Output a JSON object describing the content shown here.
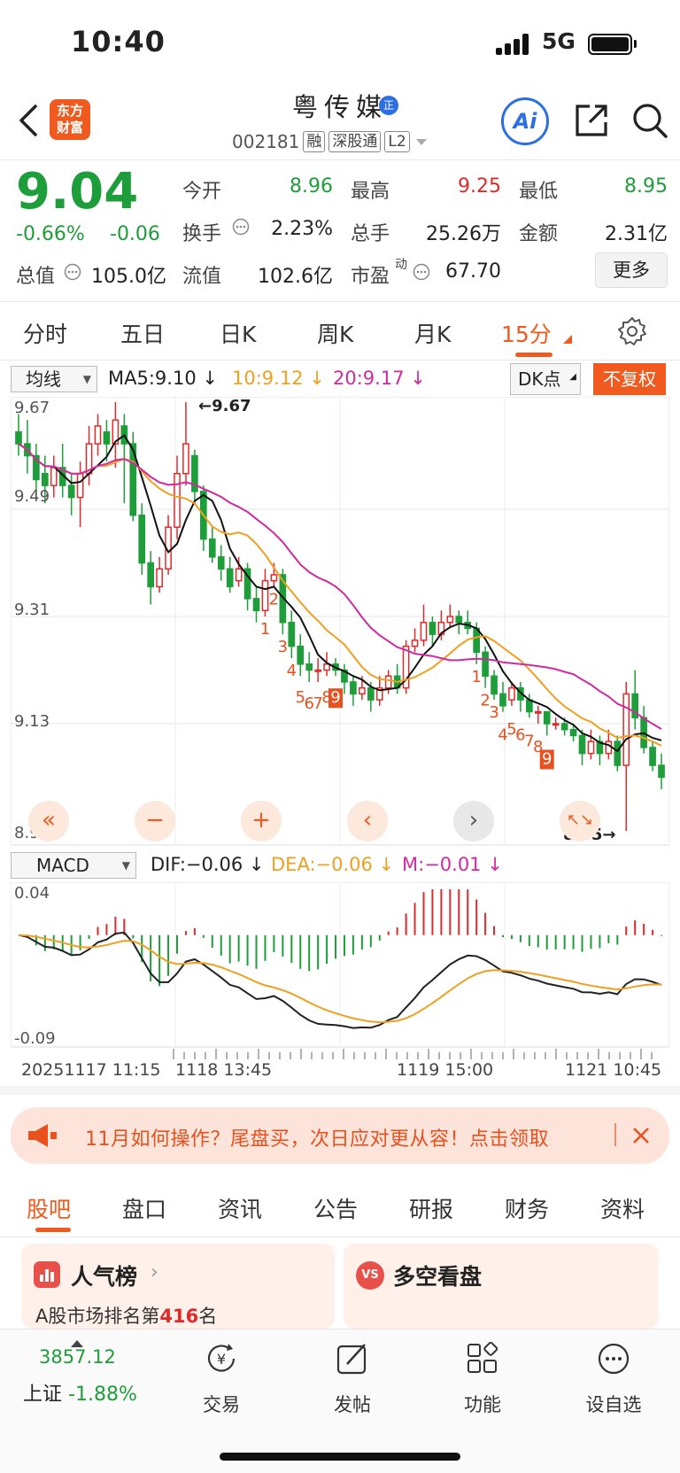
{
  "status_bar": {
    "time": "10:40",
    "network": "5G"
  },
  "header": {
    "logo_text_top": "东方",
    "logo_text_bottom": "财富",
    "title": "粤传媒",
    "title_badge": "正",
    "code": "002181",
    "tags": [
      "融",
      "深股通",
      "L2"
    ],
    "ai_label": "Ai"
  },
  "quote": {
    "price": "9.04",
    "change_pct": "-0.66%",
    "change": "-0.06",
    "open_label": "今开",
    "open": "8.96",
    "high_label": "最高",
    "high": "9.25",
    "low_label": "最低",
    "low": "8.95",
    "turnover_label": "换手",
    "turnover": "2.23%",
    "volume_label": "总手",
    "volume": "25.26万",
    "amount_label": "金额",
    "amount": "2.31亿",
    "mktcap_label": "总值",
    "mktcap": "105.0亿",
    "float_label": "流值",
    "float_cap": "102.6亿",
    "pe_label": "市盈",
    "pe_sup": "动",
    "pe": "67.70",
    "more_label": "更多"
  },
  "chart_tabs": [
    "分时",
    "五日",
    "日K",
    "周K",
    "月K",
    "15分"
  ],
  "ma_bar": {
    "select": "均线",
    "ma5": "MA5:9.10",
    "ma10": "10:9.12",
    "ma20": "20:9.17",
    "dk": "DK点",
    "fq": "不复权"
  },
  "macd_bar": {
    "select": "MACD",
    "dif": "DIF:−0.06",
    "dea": "DEA:−0.06",
    "m": "M:−0.01"
  },
  "chart_data": {
    "type": "candlestick",
    "interval": "15分",
    "y_ticks": [
      "9.67",
      "9.49",
      "9.31",
      "9.13",
      "8.95"
    ],
    "ylim": [
      8.95,
      9.67
    ],
    "high_marker": "9.67",
    "low_marker": "8.95",
    "x_labels": [
      "20251117 11:15",
      "1118 13:45",
      "1119 15:00",
      "1121 10:45"
    ],
    "td_labels_1": [
      "1",
      "2",
      "3",
      "4",
      "5",
      "6",
      "7",
      "8",
      "9"
    ],
    "td_labels_2": [
      "1",
      "2",
      "3",
      "4",
      "5",
      "6",
      "7",
      "8",
      "9"
    ],
    "candles": [
      [
        9.62,
        9.6,
        9.65,
        9.58
      ],
      [
        9.6,
        9.58,
        9.64,
        9.55
      ],
      [
        9.58,
        9.54,
        9.6,
        9.52
      ],
      [
        9.55,
        9.53,
        9.58,
        9.5
      ],
      [
        9.53,
        9.56,
        9.58,
        9.51
      ],
      [
        9.56,
        9.53,
        9.6,
        9.51
      ],
      [
        9.53,
        9.51,
        9.55,
        9.48
      ],
      [
        9.51,
        9.55,
        9.57,
        9.46
      ],
      [
        9.55,
        9.6,
        9.63,
        9.53
      ],
      [
        9.6,
        9.63,
        9.65,
        9.58
      ],
      [
        9.62,
        9.6,
        9.64,
        9.57
      ],
      [
        9.6,
        9.64,
        9.67,
        9.56
      ],
      [
        9.63,
        9.6,
        9.65,
        9.5
      ],
      [
        9.6,
        9.48,
        9.62,
        9.47
      ],
      [
        9.48,
        9.4,
        9.5,
        9.38
      ],
      [
        9.4,
        9.36,
        9.42,
        9.33
      ],
      [
        9.36,
        9.39,
        9.41,
        9.35
      ],
      [
        9.39,
        9.46,
        9.48,
        9.38
      ],
      [
        9.46,
        9.55,
        9.58,
        9.44
      ],
      [
        9.55,
        9.6,
        9.67,
        9.53
      ],
      [
        9.58,
        9.52,
        9.59,
        9.5
      ],
      [
        9.52,
        9.44,
        9.53,
        9.42
      ],
      [
        9.44,
        9.41,
        9.46,
        9.4
      ],
      [
        9.41,
        9.39,
        9.43,
        9.37
      ],
      [
        9.39,
        9.36,
        9.41,
        9.35
      ],
      [
        9.37,
        9.39,
        9.41,
        9.36
      ],
      [
        9.39,
        9.34,
        9.4,
        9.32
      ],
      [
        9.34,
        9.32,
        9.36,
        9.3
      ],
      [
        9.32,
        9.37,
        9.39,
        9.31
      ],
      [
        9.37,
        9.38,
        9.4,
        9.36
      ],
      [
        9.38,
        9.3,
        9.39,
        9.28
      ],
      [
        9.3,
        9.26,
        9.32,
        9.24
      ],
      [
        9.26,
        9.23,
        9.28,
        9.21
      ],
      [
        9.23,
        9.22,
        9.25,
        9.2
      ],
      [
        9.22,
        9.22,
        9.24,
        9.2
      ],
      [
        9.22,
        9.23,
        9.25,
        9.21
      ],
      [
        9.23,
        9.22,
        9.24,
        9.21
      ],
      [
        9.22,
        9.2,
        9.23,
        9.18
      ],
      [
        9.2,
        9.18,
        9.21,
        9.16
      ],
      [
        9.18,
        9.19,
        9.21,
        9.17
      ],
      [
        9.19,
        9.17,
        9.2,
        9.15
      ],
      [
        9.17,
        9.19,
        9.21,
        9.16
      ],
      [
        9.19,
        9.21,
        9.22,
        9.18
      ],
      [
        9.21,
        9.19,
        9.23,
        9.18
      ],
      [
        9.19,
        9.26,
        9.27,
        9.18
      ],
      [
        9.26,
        9.27,
        9.29,
        9.25
      ],
      [
        9.27,
        9.3,
        9.33,
        9.26
      ],
      [
        9.3,
        9.28,
        9.31,
        9.26
      ],
      [
        9.28,
        9.3,
        9.32,
        9.27
      ],
      [
        9.3,
        9.31,
        9.33,
        9.29
      ],
      [
        9.31,
        9.3,
        9.32,
        9.28
      ],
      [
        9.3,
        9.29,
        9.32,
        9.28
      ],
      [
        9.29,
        9.25,
        9.3,
        9.23
      ],
      [
        9.25,
        9.21,
        9.26,
        9.19
      ],
      [
        9.21,
        9.18,
        9.22,
        9.17
      ],
      [
        9.18,
        9.16,
        9.2,
        9.15
      ],
      [
        9.17,
        9.19,
        9.2,
        9.16
      ],
      [
        9.19,
        9.17,
        9.2,
        9.15
      ],
      [
        9.17,
        9.15,
        9.18,
        9.14
      ],
      [
        9.15,
        9.15,
        9.16,
        9.13
      ],
      [
        9.15,
        9.13,
        9.15,
        9.11
      ],
      [
        9.13,
        9.13,
        9.14,
        9.12
      ],
      [
        9.13,
        9.12,
        9.14,
        9.11
      ],
      [
        9.12,
        9.11,
        9.13,
        9.1
      ],
      [
        9.11,
        9.08,
        9.12,
        9.06
      ],
      [
        9.08,
        9.1,
        9.12,
        9.07
      ],
      [
        9.1,
        9.08,
        9.11,
        9.06
      ],
      [
        9.08,
        9.1,
        9.12,
        9.07
      ],
      [
        9.1,
        9.06,
        9.11,
        9.05
      ],
      [
        9.06,
        9.18,
        9.2,
        8.95
      ],
      [
        9.18,
        9.14,
        9.22,
        9.12
      ],
      [
        9.14,
        9.09,
        9.16,
        9.08
      ],
      [
        9.09,
        9.06,
        9.1,
        9.05
      ],
      [
        9.06,
        9.04,
        9.08,
        9.02
      ]
    ],
    "macd_ylim": [
      -0.09,
      0.04
    ],
    "macd_y_ticks": [
      "0.04",
      "-0.09"
    ]
  },
  "chart_controls": [
    "«",
    "−",
    "+",
    "‹",
    "›",
    "↖↘"
  ],
  "banner": {
    "text": "11月如何操作？尾盘买，次日应对更从容！点击领取"
  },
  "bottom_tabs": [
    "股吧",
    "盘口",
    "资讯",
    "公告",
    "研报",
    "财务",
    "资料"
  ],
  "cards": {
    "popularity_title": "人气榜",
    "popularity_rank_prefix": "A股市场排名第",
    "popularity_rank": "416",
    "popularity_rank_suffix": "名",
    "longshort_title": "多空看盘"
  },
  "nav": {
    "index_value": "3857.12",
    "index_name": "上证",
    "index_change": "-1.88%",
    "items": [
      "交易",
      "发帖",
      "功能",
      "设自选"
    ]
  }
}
